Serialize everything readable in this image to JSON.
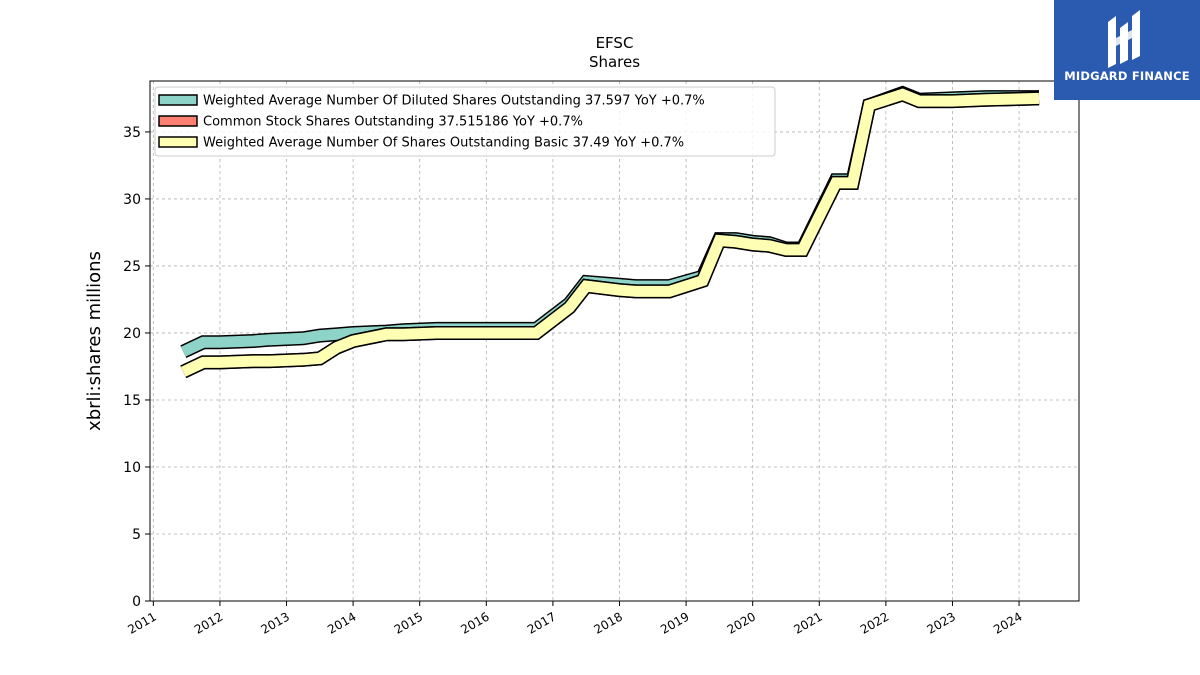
{
  "chart_data": {
    "type": "line",
    "title": "EFSC",
    "subtitle": "Shares",
    "xlabel": "",
    "ylabel": "xbrli:shares millions",
    "xlim": [
      2010.95,
      2024.9
    ],
    "ylim": [
      0,
      38.8
    ],
    "yticks": [
      0,
      5,
      10,
      15,
      20,
      25,
      30,
      35
    ],
    "xticks": [
      "2011",
      "2012",
      "2013",
      "2014",
      "2015",
      "2016",
      "2017",
      "2018",
      "2019",
      "2020",
      "2021",
      "2022",
      "2023",
      "2024"
    ],
    "grid": true,
    "legend_position": "top-left",
    "series": [
      {
        "name": "Weighted Average Number Of Diluted Shares Outstanding  37.597 YoY +0.7%",
        "color": "#8dd3c7",
        "x": [
          2011.45,
          2011.75,
          2012.0,
          2012.5,
          2012.75,
          2013.25,
          2013.5,
          2013.75,
          2014.0,
          2014.5,
          2014.75,
          2015.25,
          2015.5,
          2015.75,
          2016.0,
          2016.75,
          2017.25,
          2017.5,
          2018.0,
          2018.25,
          2018.75,
          2019.25,
          2019.5,
          2019.75,
          2020.0,
          2020.25,
          2020.5,
          2020.75,
          2021.25,
          2021.5,
          2021.75,
          2022.25,
          2022.5,
          2023.0,
          2023.5,
          2024.3
        ],
        "values": [
          18.6,
          19.3,
          19.3,
          19.4,
          19.5,
          19.6,
          19.8,
          19.9,
          20.0,
          20.1,
          20.2,
          20.3,
          20.3,
          20.3,
          20.3,
          20.3,
          22.2,
          23.8,
          23.6,
          23.5,
          23.5,
          24.2,
          27.0,
          27.0,
          26.8,
          26.7,
          26.3,
          26.3,
          31.4,
          31.4,
          37.0,
          37.9,
          37.4,
          37.5,
          37.6,
          37.6
        ]
      },
      {
        "name": "Common Stock Shares Outstanding  37.515186 YoY +0.7%",
        "color": "#fb8072",
        "x": [
          2011.45,
          2011.75,
          2012.0,
          2012.5,
          2012.75,
          2013.25,
          2013.5,
          2013.75,
          2014.0,
          2014.5,
          2014.75,
          2015.25,
          2015.5,
          2015.75,
          2016.0,
          2016.75,
          2017.25,
          2017.5,
          2018.0,
          2018.25,
          2018.75,
          2019.25,
          2019.5,
          2019.75,
          2020.0,
          2020.25,
          2020.5,
          2020.75,
          2021.25,
          2021.5,
          2021.75,
          2022.25,
          2022.5,
          2023.0,
          2023.5,
          2024.3
        ],
        "values": [
          17.1,
          17.8,
          17.8,
          17.9,
          17.9,
          18.0,
          18.1,
          18.9,
          19.4,
          19.9,
          19.9,
          20.0,
          20.0,
          20.0,
          20.0,
          20.0,
          21.9,
          23.5,
          23.2,
          23.1,
          23.1,
          23.9,
          26.9,
          26.8,
          26.6,
          26.5,
          26.2,
          26.2,
          31.2,
          31.2,
          37.0,
          37.8,
          37.3,
          37.3,
          37.4,
          37.5
        ]
      },
      {
        "name": "Weighted Average Number Of Shares Outstanding Basic  37.49 YoY +0.7%",
        "color": "#ffffb3",
        "x": [
          2011.45,
          2011.75,
          2012.0,
          2012.5,
          2012.75,
          2013.25,
          2013.5,
          2013.75,
          2014.0,
          2014.5,
          2014.75,
          2015.25,
          2015.5,
          2015.75,
          2016.0,
          2016.75,
          2017.25,
          2017.5,
          2018.0,
          2018.25,
          2018.75,
          2019.25,
          2019.5,
          2019.75,
          2020.0,
          2020.25,
          2020.5,
          2020.75,
          2021.25,
          2021.5,
          2021.75,
          2022.25,
          2022.5,
          2023.0,
          2023.5,
          2024.3
        ],
        "values": [
          17.1,
          17.8,
          17.8,
          17.9,
          17.9,
          18.0,
          18.1,
          18.9,
          19.4,
          19.9,
          19.9,
          20.0,
          20.0,
          20.0,
          20.0,
          20.0,
          21.9,
          23.5,
          23.2,
          23.1,
          23.1,
          23.9,
          26.9,
          26.8,
          26.6,
          26.5,
          26.2,
          26.2,
          31.2,
          31.2,
          37.0,
          37.8,
          37.3,
          37.3,
          37.4,
          37.5
        ]
      }
    ]
  },
  "logo": {
    "text": "MIDGARD FINANCE",
    "icon": "midgard-logo-icon",
    "color": "#2b5bb0"
  }
}
